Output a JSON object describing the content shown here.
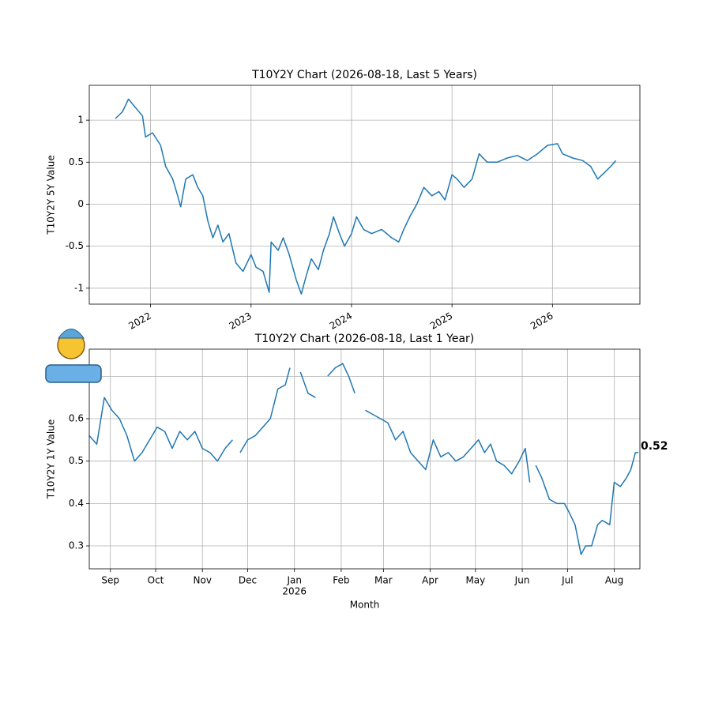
{
  "chart_data": [
    {
      "type": "line",
      "title": "T10Y2Y Chart (2026-08-18, Last 5 Years)",
      "ylabel": "T10Y2Y 5Y Value",
      "color": "#1f77b4",
      "grid": true,
      "xlim": [
        2021.39,
        2026.87
      ],
      "xticks": [
        2022,
        2023,
        2024,
        2025,
        2026
      ],
      "ylim": [
        -1.19,
        1.415
      ],
      "yticks": [
        -1.0,
        -0.5,
        0.0,
        0.5,
        1.0
      ],
      "x": [
        2021.65,
        2021.72,
        2021.78,
        2021.85,
        2021.92,
        2021.95,
        2022.02,
        2022.1,
        2022.15,
        2022.22,
        2022.27,
        2022.3,
        2022.35,
        2022.42,
        2022.47,
        2022.52,
        2022.57,
        2022.62,
        2022.67,
        2022.72,
        2022.78,
        2022.85,
        2022.92,
        2023.0,
        2023.05,
        2023.12,
        2023.18,
        2023.2,
        2023.27,
        2023.32,
        2023.38,
        2023.45,
        2023.5,
        2023.55,
        2023.6,
        2023.67,
        2023.72,
        2023.78,
        2023.82,
        2023.88,
        2023.93,
        2024.0,
        2024.05,
        2024.12,
        2024.2,
        2024.3,
        2024.4,
        2024.47,
        2024.52,
        2024.58,
        2024.65,
        2024.72,
        2024.8,
        2024.87,
        2024.93,
        2025.0,
        2025.05,
        2025.12,
        2025.2,
        2025.27,
        2025.35,
        2025.45,
        2025.55,
        2025.65,
        2025.75,
        2025.85,
        2025.95,
        2026.05,
        2026.1,
        2026.2,
        2026.3,
        2026.38,
        2026.45,
        2026.52,
        2026.58,
        2026.63
      ],
      "values": [
        1.02,
        1.1,
        1.25,
        1.15,
        1.05,
        0.8,
        0.85,
        0.7,
        0.45,
        0.3,
        0.1,
        -0.03,
        0.3,
        0.35,
        0.2,
        0.1,
        -0.2,
        -0.4,
        -0.25,
        -0.45,
        -0.35,
        -0.7,
        -0.8,
        -0.6,
        -0.75,
        -0.8,
        -1.05,
        -0.45,
        -0.55,
        -0.4,
        -0.6,
        -0.9,
        -1.07,
        -0.85,
        -0.65,
        -0.78,
        -0.55,
        -0.35,
        -0.15,
        -0.35,
        -0.5,
        -0.35,
        -0.15,
        -0.3,
        -0.35,
        -0.3,
        -0.4,
        -0.45,
        -0.3,
        -0.15,
        0.0,
        0.2,
        0.1,
        0.15,
        0.05,
        0.35,
        0.3,
        0.2,
        0.3,
        0.6,
        0.5,
        0.5,
        0.55,
        0.58,
        0.52,
        0.6,
        0.7,
        0.72,
        0.6,
        0.55,
        0.52,
        0.45,
        0.3,
        0.38,
        0.45,
        0.52
      ]
    },
    {
      "type": "line",
      "title": "T10Y2Y Chart (2026-08-18, Last 1 Year)",
      "ylabel": "T10Y2Y 1Y Value",
      "xlabel": "Month",
      "xtick_sublabel": "2026",
      "annotation": 0.52,
      "color": "#1f77b4",
      "grid": true,
      "xlim": [
        0,
        365
      ],
      "xticks": [
        {
          "value": 14,
          "label": "Sep"
        },
        {
          "value": 44,
          "label": "Oct"
        },
        {
          "value": 75,
          "label": "Nov"
        },
        {
          "value": 105,
          "label": "Dec"
        },
        {
          "value": 136,
          "label": "Jan"
        },
        {
          "value": 167,
          "label": "Feb"
        },
        {
          "value": 195,
          "label": "Mar"
        },
        {
          "value": 226,
          "label": "Apr"
        },
        {
          "value": 256,
          "label": "May"
        },
        {
          "value": 287,
          "label": "Jun"
        },
        {
          "value": 317,
          "label": "Jul"
        },
        {
          "value": 348,
          "label": "Aug"
        }
      ],
      "ylim": [
        0.246,
        0.764
      ],
      "yticks": [
        0.3,
        0.4,
        0.5,
        0.6,
        0.7
      ],
      "x": [
        0,
        5,
        10,
        15,
        20,
        25,
        30,
        35,
        40,
        45,
        50,
        55,
        60,
        65,
        70,
        75,
        80,
        85,
        90,
        95,
        98,
        100,
        105,
        110,
        115,
        120,
        125,
        130,
        133,
        136,
        140,
        145,
        150,
        155,
        158,
        163,
        168,
        172,
        176,
        180,
        183,
        188,
        193,
        198,
        203,
        208,
        213,
        218,
        223,
        228,
        233,
        238,
        243,
        248,
        253,
        258,
        262,
        266,
        270,
        275,
        280,
        285,
        289,
        292,
        294,
        296,
        300,
        305,
        310,
        315,
        318,
        322,
        326,
        329,
        333,
        337,
        340,
        345,
        348,
        352,
        356,
        359,
        362,
        364
      ],
      "values": [
        0.56,
        0.54,
        0.65,
        0.62,
        0.6,
        0.56,
        0.5,
        0.52,
        0.55,
        0.58,
        0.57,
        0.53,
        0.57,
        0.55,
        0.57,
        0.53,
        0.52,
        0.5,
        0.53,
        0.55,
        null,
        0.52,
        0.55,
        0.56,
        0.58,
        0.6,
        0.67,
        0.68,
        0.72,
        null,
        0.71,
        0.66,
        0.65,
        null,
        0.7,
        0.72,
        0.73,
        0.7,
        0.66,
        null,
        0.62,
        0.61,
        0.6,
        0.59,
        0.55,
        0.57,
        0.52,
        0.5,
        0.48,
        0.55,
        0.51,
        0.52,
        0.5,
        0.51,
        0.53,
        0.55,
        0.52,
        0.54,
        0.5,
        0.49,
        0.47,
        0.5,
        0.53,
        0.45,
        null,
        0.49,
        0.46,
        0.41,
        0.4,
        0.4,
        0.38,
        0.35,
        0.28,
        0.3,
        0.3,
        0.35,
        0.36,
        0.35,
        0.45,
        0.44,
        0.46,
        0.48,
        0.52,
        0.52
      ]
    }
  ]
}
